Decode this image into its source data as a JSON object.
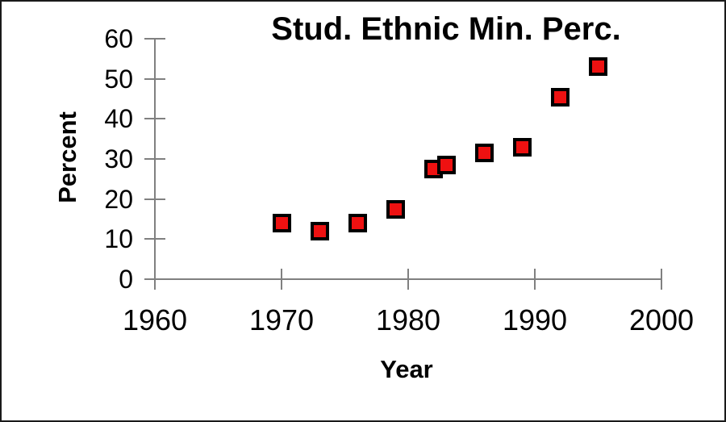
{
  "chart_data": {
    "type": "scatter",
    "title": "Stud. Ethnic Min. Perc.",
    "xlabel": "Year",
    "ylabel": "Percent",
    "xlim": [
      1960,
      2000
    ],
    "ylim": [
      0,
      60
    ],
    "x_ticks": [
      1960,
      1970,
      1980,
      1990,
      2000
    ],
    "y_ticks": [
      0,
      10,
      20,
      30,
      40,
      50,
      60
    ],
    "grid": false,
    "legend": "none",
    "tick_style": "cross",
    "marker": {
      "shape": "square",
      "fill_color": "#ee1111",
      "border_color": "#000000"
    },
    "axis_color": "#808080",
    "points": [
      {
        "x": 1970,
        "y": 14
      },
      {
        "x": 1973,
        "y": 12
      },
      {
        "x": 1976,
        "y": 14
      },
      {
        "x": 1979,
        "y": 17.5
      },
      {
        "x": 1982,
        "y": 27.5
      },
      {
        "x": 1983,
        "y": 28.5
      },
      {
        "x": 1986,
        "y": 31.5
      },
      {
        "x": 1989,
        "y": 33
      },
      {
        "x": 1992,
        "y": 45.5
      },
      {
        "x": 1995,
        "y": 53
      }
    ]
  }
}
